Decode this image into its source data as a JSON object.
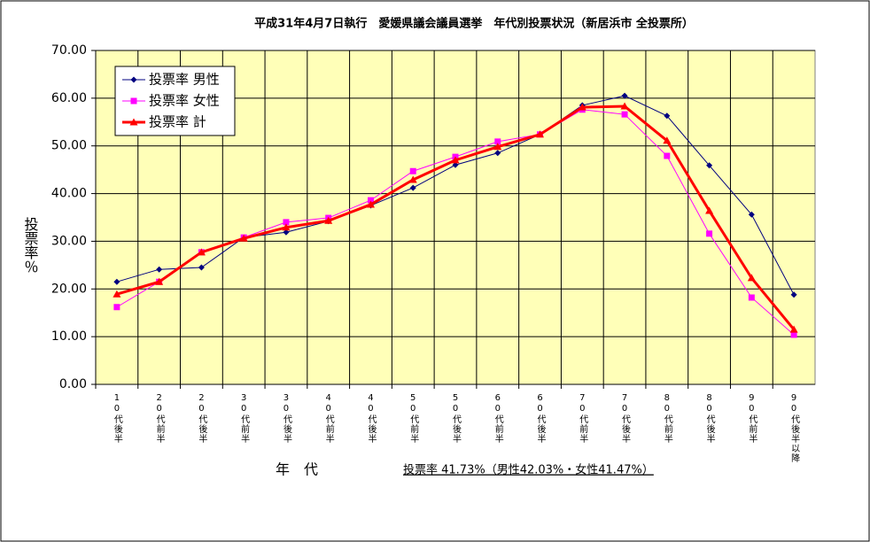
{
  "chart_data": {
    "type": "line",
    "title": "平成31年4月7日執行　愛媛県議会議員選挙　年代別投票状況（新居浜市 全投票所）",
    "y_label": "投票率％",
    "x_label": "年　代",
    "annotation": "投票率 41.73%（男性42.03%・女性41.47%）",
    "categories": [
      "10代後半",
      "20代前半",
      "20代後半",
      "30代前半",
      "30代後半",
      "40代前半",
      "40代後半",
      "50代前半",
      "50代後半",
      "60代前半",
      "60代後半",
      "70代前半",
      "70代後半",
      "80代前半",
      "80代後半",
      "90代前半",
      "90代後半以降"
    ],
    "series": [
      {
        "name": "投票率 男性",
        "color": "#000080",
        "marker": "diamond",
        "values": [
          21.5,
          24.1,
          24.5,
          30.8,
          31.9,
          34.2,
          37.5,
          41.2,
          46.0,
          48.5,
          52.4,
          58.5,
          60.5,
          56.3,
          45.9,
          35.6,
          18.8
        ]
      },
      {
        "name": "投票率 女性",
        "color": "#ff00ff",
        "marker": "square",
        "values": [
          16.2,
          21.5,
          27.7,
          30.8,
          34.0,
          34.9,
          38.6,
          44.7,
          47.7,
          50.9,
          52.4,
          57.6,
          56.6,
          47.9,
          31.6,
          18.2,
          10.4
        ]
      },
      {
        "name": "投票率 計",
        "color": "#ff0000",
        "marker": "triangle",
        "values": [
          18.9,
          21.5,
          27.7,
          30.6,
          32.9,
          34.3,
          37.7,
          42.9,
          47.0,
          49.8,
          52.4,
          58.1,
          58.3,
          51.1,
          36.4,
          22.3,
          11.5
        ]
      }
    ],
    "ylim": [
      0,
      70
    ],
    "yticks": [
      {
        "value": 0,
        "label": "0.00"
      },
      {
        "value": 10,
        "label": "10.00"
      },
      {
        "value": 20,
        "label": "20.00"
      },
      {
        "value": 30,
        "label": "30.00"
      },
      {
        "value": 40,
        "label": "40.00"
      },
      {
        "value": 50,
        "label": "50.00"
      },
      {
        "value": 60,
        "label": "60.00"
      },
      {
        "value": 70,
        "label": "70.00"
      }
    ],
    "grid": true,
    "legend": "upper-left"
  }
}
